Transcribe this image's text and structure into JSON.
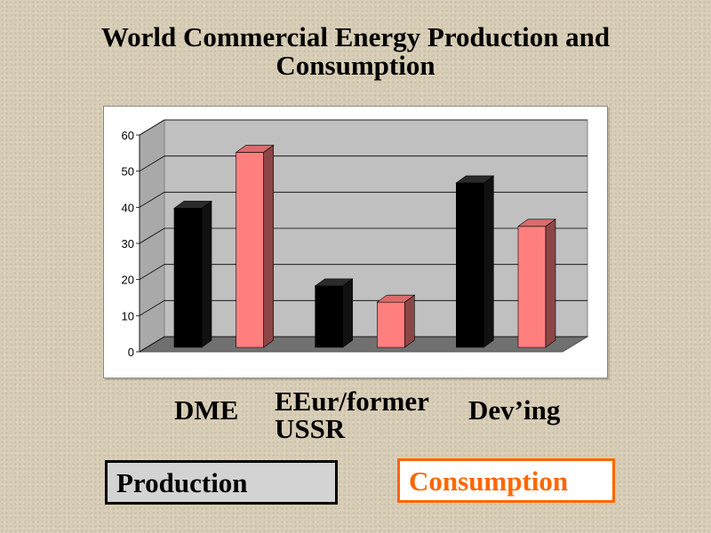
{
  "title": {
    "line1": "World Commercial Energy Production and",
    "line2": "Consumption"
  },
  "chart_data": {
    "type": "bar",
    "style": "3d-clustered",
    "categories": [
      "DME",
      "EEur/former USSR",
      "Dev’ing"
    ],
    "series": [
      {
        "name": "Production",
        "values": [
          38.5,
          17,
          45.5
        ],
        "color": "#000000"
      },
      {
        "name": "Consumption",
        "values": [
          54,
          12.5,
          33.5
        ],
        "color": "#ff7f7f"
      }
    ],
    "ylim": [
      0,
      60
    ],
    "yticks": [
      0,
      10,
      20,
      30,
      40,
      50,
      60
    ],
    "grid": true,
    "legend_placement": "bottom"
  },
  "category_labels": {
    "c1": "DME",
    "c2": "EEur/former USSR",
    "c3": "Dev’ing"
  },
  "legend": {
    "production": "Production",
    "consumption": "Consumption",
    "production_color": "#000000",
    "consumption_color": "#ff6600"
  }
}
